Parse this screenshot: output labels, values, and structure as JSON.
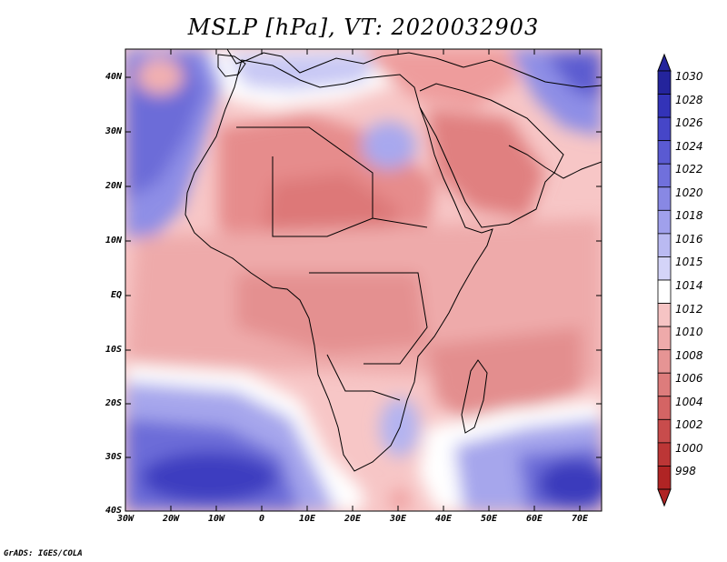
{
  "title": "MSLP [hPa], VT: 2020032903",
  "footer": "GrADS: IGES/COLA",
  "map": {
    "lat_labels": [
      "40N",
      "30N",
      "20N",
      "10N",
      "EQ",
      "10S",
      "20S",
      "30S",
      "40S"
    ],
    "lon_labels": [
      "30W",
      "20W",
      "10W",
      "0",
      "10E",
      "20E",
      "30E",
      "40E",
      "50E",
      "60E",
      "70E"
    ]
  },
  "colorbar": {
    "levels": [
      "1030",
      "1028",
      "1026",
      "1024",
      "1022",
      "1020",
      "1018",
      "1016",
      "1015",
      "1014",
      "1012",
      "1010",
      "1008",
      "1006",
      "1004",
      "1002",
      "1000",
      "998"
    ],
    "colors": [
      "#24249c",
      "#3333b8",
      "#4646c8",
      "#5a5ad2",
      "#7070dc",
      "#8888e4",
      "#a0a0ec",
      "#babaf2",
      "#d4d4f8",
      "#ffffff",
      "#f6c4c4",
      "#eeaaaa",
      "#e69494",
      "#dd7c7c",
      "#d46464",
      "#c84c4c",
      "#bc3636",
      "#b02424"
    ]
  },
  "colors": {
    "low": "#e88f8f",
    "high": "#3a3ac0",
    "background": "#ffffff"
  }
}
